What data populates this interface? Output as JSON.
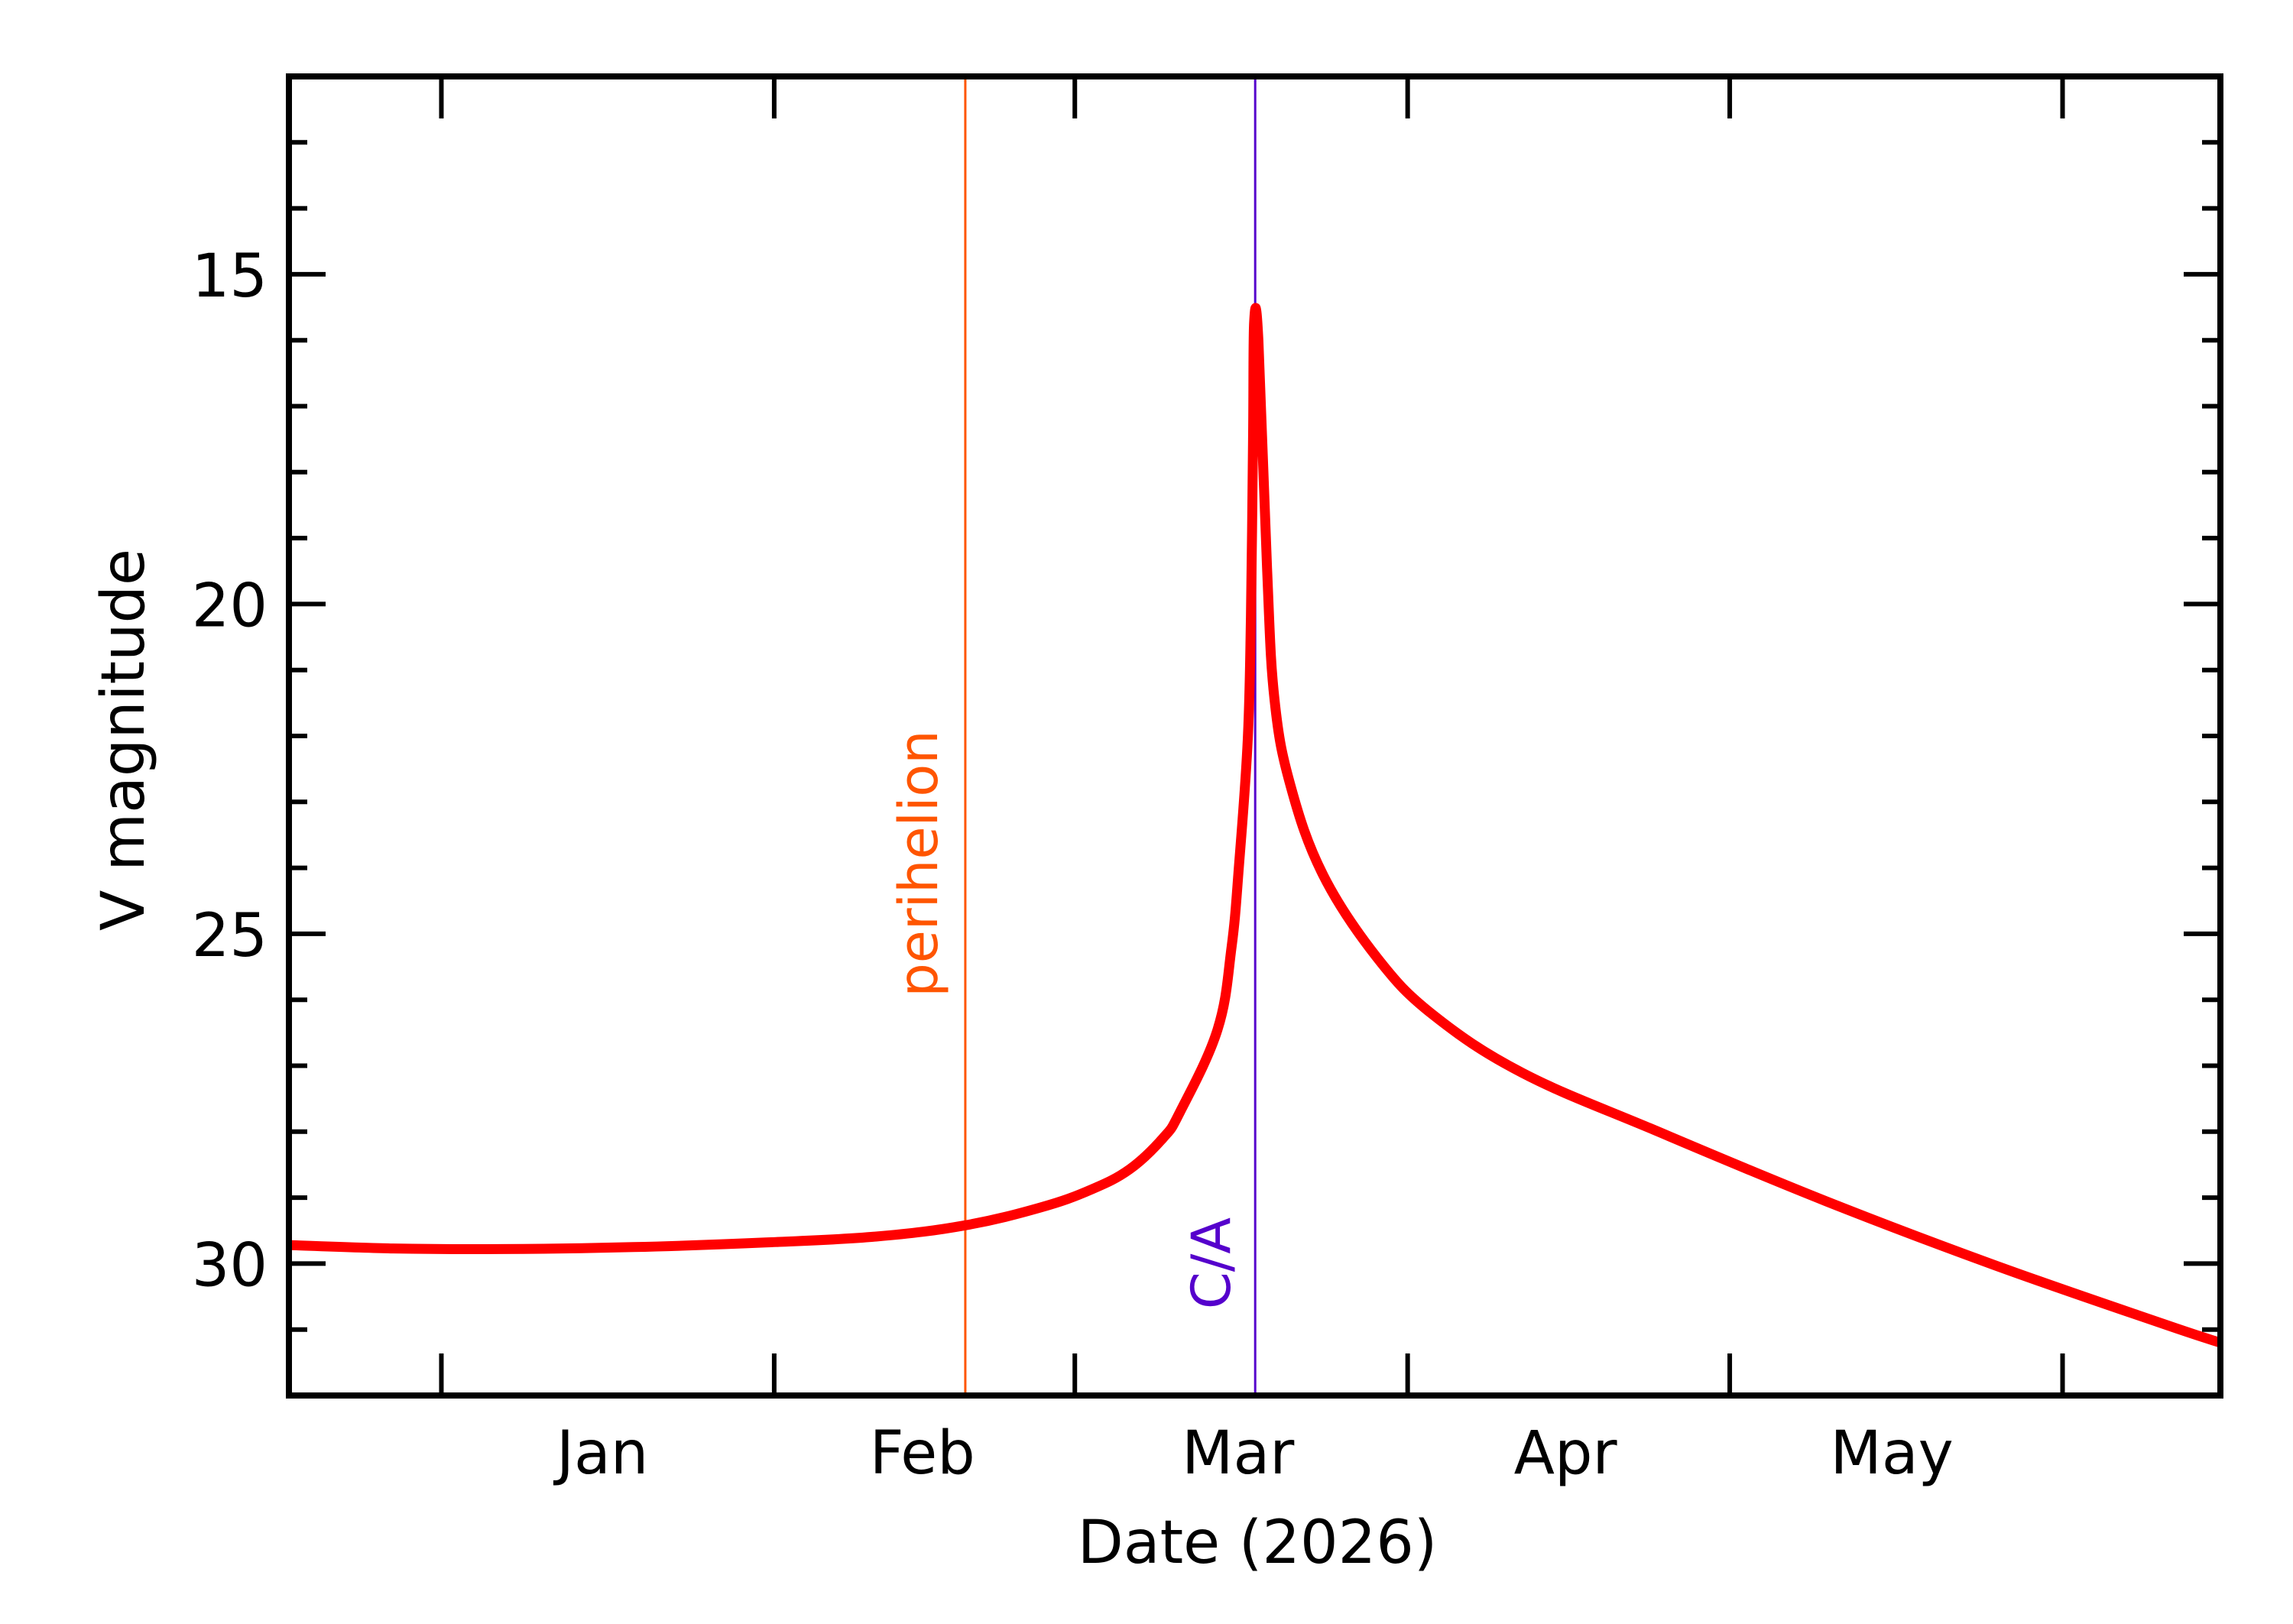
{
  "chart_data": {
    "type": "line",
    "title": "",
    "xlabel": "Date (2026)",
    "ylabel": "V magnitude",
    "x_unit": "days since 2026-01-01",
    "xlim": [
      -14.2,
      165.7
    ],
    "ylim": [
      32,
      12
    ],
    "y_inverted": true,
    "grid": false,
    "legend": null,
    "x_ticks": [
      {
        "day": 0,
        "date": "2026-01-01"
      },
      {
        "day": 31,
        "date": "2026-02-01"
      },
      {
        "day": 59,
        "date": "2026-03-01"
      },
      {
        "day": 90,
        "date": "2026-04-01"
      },
      {
        "day": 120,
        "date": "2026-05-01"
      },
      {
        "day": 151,
        "date": "2026-06-01"
      }
    ],
    "x_tick_labels": [
      {
        "label": "Jan",
        "day": 15.0
      },
      {
        "label": "Feb",
        "day": 44.8
      },
      {
        "label": "Mar",
        "day": 74.2
      },
      {
        "label": "Apr",
        "day": 104.7
      },
      {
        "label": "May",
        "day": 135.1
      }
    ],
    "y_major_ticks": [
      15,
      20,
      25,
      30
    ],
    "y_tick_labels": [
      "15",
      "20",
      "25",
      "30"
    ],
    "y_minor_step": 1,
    "series": [
      {
        "name": "V magnitude",
        "color": "#ff0000",
        "x": [
          -14.2,
          -4.5,
          5.7,
          17.9,
          30.2,
          40.5,
          48.8,
          55.8,
          60.5,
          64.1,
          67.2,
          68.8,
          72.3,
          73.6,
          74.3,
          75.1,
          75.4,
          75.6,
          75.7,
          76.1,
          76.9,
          77.6,
          79.1,
          82.1,
          87.1,
          92.3,
          100.7,
          113.2,
          128.9,
          144.6,
          160.3,
          165.7
        ],
        "values": [
          29.72,
          29.77,
          29.78,
          29.75,
          29.68,
          29.59,
          29.42,
          29.15,
          28.88,
          28.57,
          28.1,
          27.7,
          26.45,
          25.2,
          23.95,
          22.07,
          20.2,
          17.5,
          15.73,
          16.0,
          19.45,
          21.45,
          22.76,
          24.1,
          25.35,
          26.22,
          27.11,
          27.99,
          29.05,
          30.02,
          30.91,
          31.2
        ]
      }
    ],
    "annotations": [
      {
        "label": "perihelion",
        "day": 48.8,
        "color": "#ff5500",
        "type": "vertical-line"
      },
      {
        "label": "C/A",
        "day": 75.8,
        "color": "#5500cc",
        "type": "vertical-line"
      }
    ]
  },
  "axes": {
    "xlabel": "Date (2026)",
    "ylabel": "V magnitude"
  },
  "markers": {
    "perihelion_label": "perihelion",
    "ca_label": "C/A"
  }
}
